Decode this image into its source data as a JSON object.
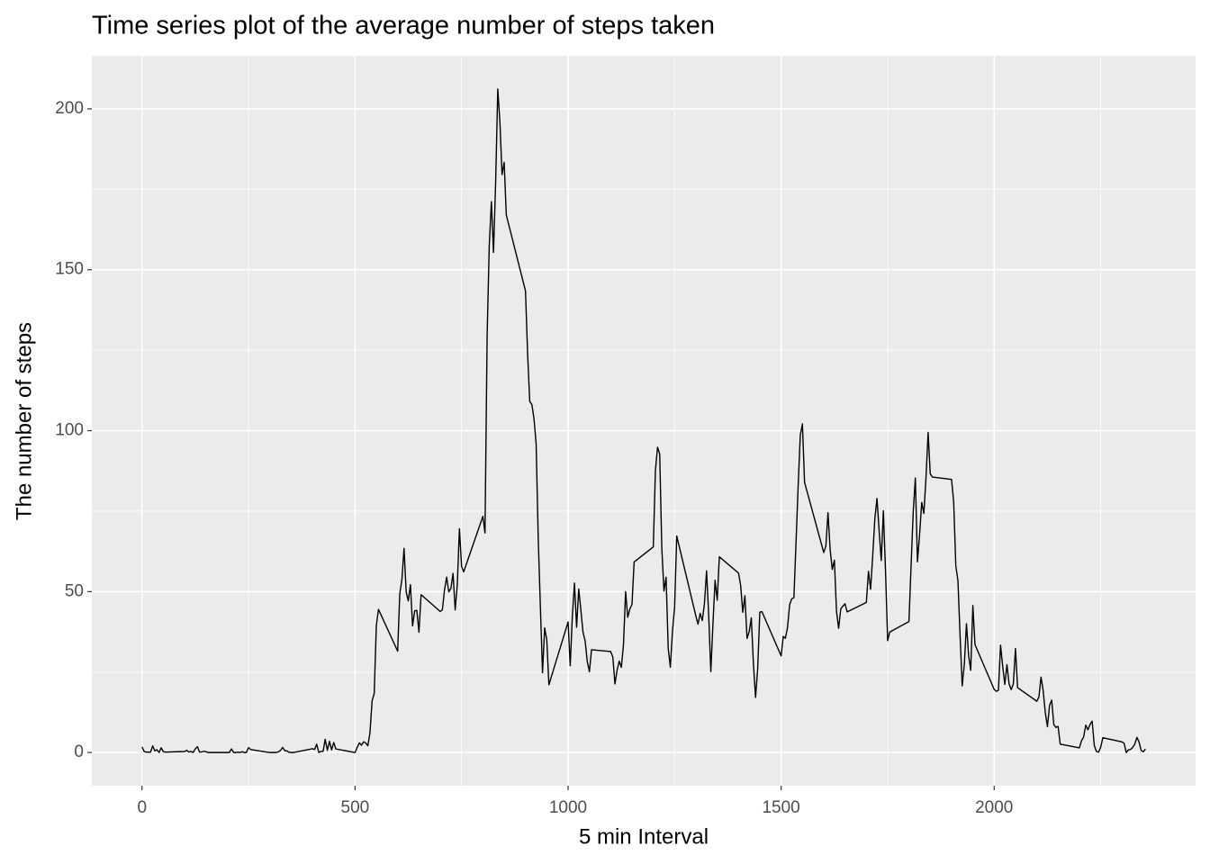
{
  "chart_data": {
    "type": "line",
    "title": "Time series plot of the average number of steps taken",
    "xlabel": "5 min Interval",
    "ylabel": "The number of steps",
    "color": "#000000",
    "grid": true,
    "xlim": [
      -117.75,
      2472.75
    ],
    "ylim": [
      -10.31,
      216.48
    ],
    "xticks": [
      0,
      500,
      1000,
      1500,
      2000
    ],
    "yticks": [
      0,
      50,
      100,
      150,
      200
    ],
    "xminor_ticks": [
      250,
      750,
      1250,
      1750,
      2250
    ],
    "yminor_ticks": [
      25,
      75,
      125,
      175
    ],
    "x": [
      0,
      5,
      10,
      15,
      20,
      25,
      30,
      35,
      40,
      45,
      50,
      55,
      100,
      105,
      110,
      115,
      120,
      125,
      130,
      135,
      140,
      145,
      150,
      155,
      200,
      205,
      210,
      215,
      220,
      225,
      230,
      235,
      240,
      245,
      250,
      255,
      300,
      305,
      310,
      315,
      320,
      325,
      330,
      335,
      340,
      345,
      350,
      355,
      400,
      405,
      410,
      415,
      420,
      425,
      430,
      435,
      440,
      445,
      450,
      455,
      500,
      505,
      510,
      515,
      520,
      525,
      530,
      535,
      540,
      545,
      550,
      555,
      600,
      605,
      610,
      615,
      620,
      625,
      630,
      635,
      640,
      645,
      650,
      655,
      700,
      705,
      710,
      715,
      720,
      725,
      730,
      735,
      740,
      745,
      750,
      755,
      800,
      805,
      810,
      815,
      820,
      825,
      830,
      835,
      840,
      845,
      850,
      855,
      900,
      905,
      910,
      915,
      920,
      925,
      930,
      935,
      940,
      945,
      950,
      955,
      1000,
      1005,
      1010,
      1015,
      1020,
      1025,
      1030,
      1035,
      1040,
      1045,
      1050,
      1055,
      1100,
      1105,
      1110,
      1115,
      1120,
      1125,
      1130,
      1135,
      1140,
      1145,
      1150,
      1155,
      1200,
      1205,
      1210,
      1215,
      1220,
      1225,
      1230,
      1235,
      1240,
      1245,
      1250,
      1255,
      1300,
      1305,
      1310,
      1315,
      1320,
      1325,
      1330,
      1335,
      1340,
      1345,
      1350,
      1355,
      1400,
      1405,
      1410,
      1415,
      1420,
      1425,
      1430,
      1435,
      1440,
      1445,
      1450,
      1455,
      1500,
      1505,
      1510,
      1515,
      1520,
      1525,
      1530,
      1535,
      1540,
      1545,
      1550,
      1555,
      1600,
      1605,
      1610,
      1615,
      1620,
      1625,
      1630,
      1635,
      1640,
      1645,
      1650,
      1655,
      1700,
      1705,
      1710,
      1715,
      1720,
      1725,
      1730,
      1735,
      1740,
      1745,
      1750,
      1755,
      1800,
      1805,
      1810,
      1815,
      1820,
      1825,
      1830,
      1835,
      1840,
      1845,
      1850,
      1855,
      1900,
      1905,
      1910,
      1915,
      1920,
      1925,
      1930,
      1935,
      1940,
      1945,
      1950,
      1955,
      2000,
      2005,
      2010,
      2015,
      2020,
      2025,
      2030,
      2035,
      2040,
      2045,
      2050,
      2055,
      2100,
      2105,
      2110,
      2115,
      2120,
      2125,
      2130,
      2135,
      2140,
      2145,
      2150,
      2155,
      2200,
      2205,
      2210,
      2215,
      2220,
      2225,
      2230,
      2235,
      2240,
      2245,
      2250,
      2255,
      2300,
      2305,
      2310,
      2315,
      2320,
      2325,
      2330,
      2335,
      2340,
      2345,
      2350,
      2355
    ],
    "values": [
      1.72,
      0.34,
      0.13,
      0.15,
      0.08,
      2.09,
      0.53,
      0.87,
      0,
      1.47,
      0.3,
      0.13,
      0.32,
      0.68,
      0.15,
      0.34,
      0,
      1.11,
      1.83,
      0.17,
      0.17,
      0.38,
      0.26,
      0,
      0,
      0,
      1.13,
      0,
      0,
      0.13,
      0,
      0.23,
      0,
      0,
      1.55,
      0.94,
      0,
      0,
      0,
      0,
      0.21,
      0.62,
      1.62,
      0.58,
      0.49,
      0.08,
      0,
      0,
      1.19,
      0.94,
      2.57,
      0,
      0.34,
      0.36,
      4.11,
      0.66,
      3.49,
      0.83,
      3.11,
      1.11,
      0,
      1.57,
      3,
      2.25,
      3.32,
      2.96,
      2.09,
      6.06,
      16.02,
      18.34,
      39.45,
      44.49,
      31.49,
      49.26,
      53.77,
      63.45,
      49.96,
      47.08,
      52.15,
      39.34,
      44.02,
      44.17,
      37.36,
      49.04,
      43.81,
      44.38,
      50.51,
      54.51,
      49.92,
      50.98,
      55.68,
      44.32,
      52.26,
      69.55,
      57.85,
      56.15,
      73.38,
      68.21,
      129.43,
      157.53,
      171.15,
      155.4,
      177.3,
      206.17,
      195.92,
      179.57,
      183.4,
      167.02,
      143.45,
      124.04,
      109.11,
      108.11,
      103.72,
      95.97,
      66.21,
      45.23,
      24.79,
      38.75,
      34.98,
      21.06,
      40.57,
      26.98,
      42.42,
      52.66,
      38.92,
      50.79,
      44.28,
      37.42,
      34.7,
      28.34,
      25.09,
      31.94,
      31.36,
      29.68,
      21.32,
      25.55,
      28.38,
      26.47,
      33.43,
      49.98,
      42.04,
      44.6,
      46.04,
      59.19,
      63.87,
      87.7,
      94.85,
      92.77,
      63.4,
      50.17,
      54.47,
      32.42,
      26.53,
      37.74,
      45.06,
      67.28,
      42.34,
      39.88,
      43.26,
      40.98,
      46.25,
      56.43,
      42.75,
      25.13,
      39.96,
      53.55,
      47.32,
      60.81,
      55.75,
      51.96,
      43.58,
      48.7,
      35.47,
      37.55,
      41.85,
      27.51,
      17.11,
      26.08,
      43.62,
      43.77,
      30.02,
      36.08,
      35.49,
      38.85,
      45.96,
      47.75,
      48.13,
      65.32,
      82.91,
      98.66,
      102.11,
      83.96,
      62.13,
      64.13,
      74.55,
      63.17,
      56.91,
      59.77,
      43.87,
      38.57,
      44.66,
      45.45,
      46.21,
      43.68,
      46.62,
      56.3,
      50.72,
      61.23,
      72.72,
      78.94,
      68.94,
      59.66,
      75.09,
      56.51,
      34.77,
      37.45,
      40.68,
      58.02,
      74.7,
      85.32,
      59.26,
      67.77,
      77.7,
      74.25,
      85.34,
      99.45,
      86.58,
      85.6,
      84.87,
      77.83,
      58.04,
      53.36,
      36.33,
      20.72,
      27.4,
      40.02,
      30.21,
      25.55,
      45.66,
      33.53,
      19.62,
      19.02,
      19.34,
      33.34,
      26.81,
      21.17,
      27.3,
      21.34,
      19.55,
      21.32,
      32.3,
      20.15,
      15.94,
      17.23,
      23.45,
      19.25,
      12.45,
      8.02,
      14.66,
      16.3,
      8.68,
      7.79,
      8.13,
      2.62,
      1.45,
      3.68,
      4.81,
      8.51,
      7.08,
      8.7,
      9.75,
      2.21,
      0.32,
      0.11,
      1.6,
      4.6,
      3.3,
      2.85,
      0,
      0.83,
      0.96,
      1.58,
      2.6,
      4.7,
      3.3,
      0.64,
      0.23,
      1.08
    ]
  }
}
